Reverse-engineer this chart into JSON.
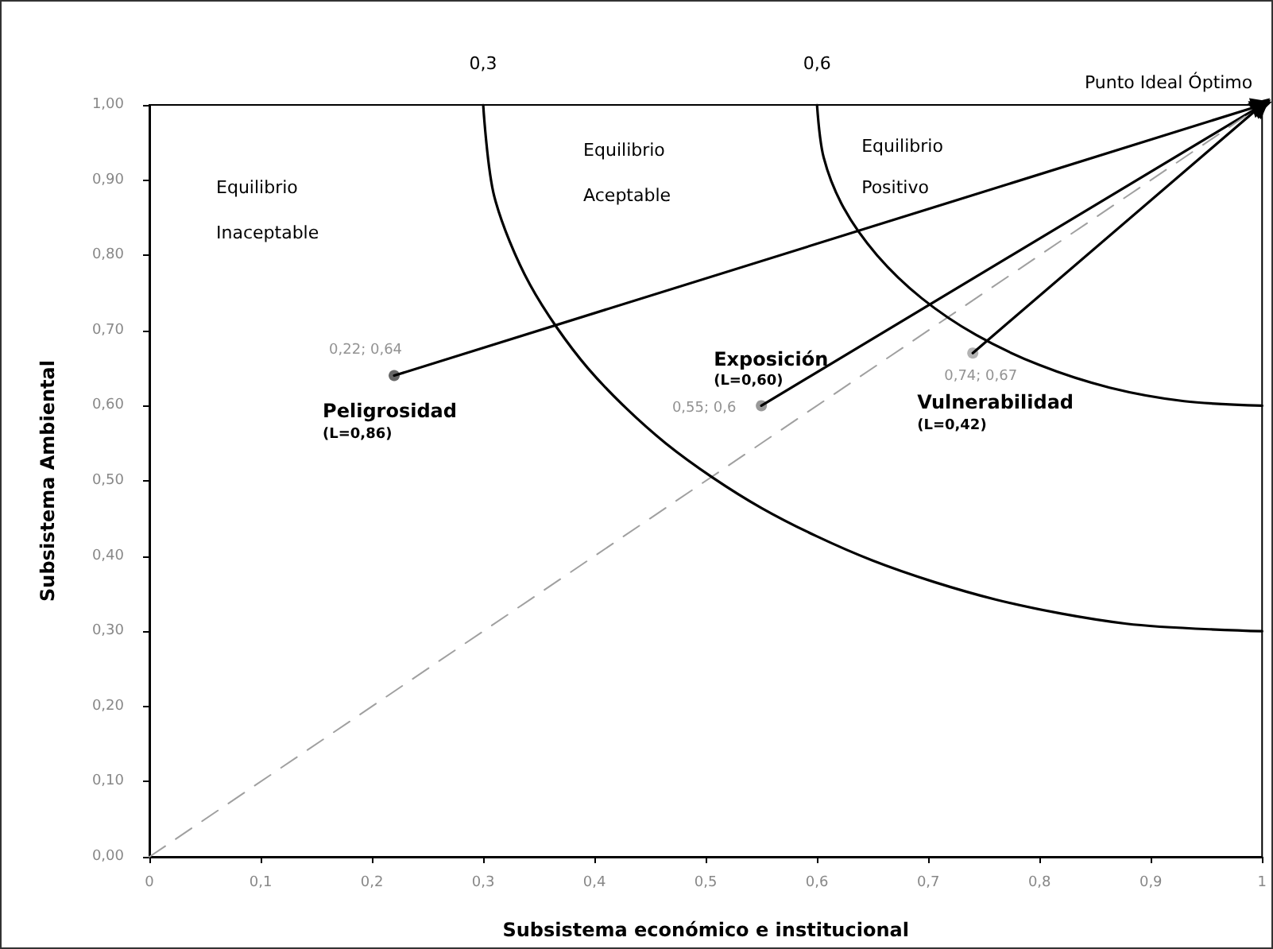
{
  "chart_data": {
    "type": "scatter",
    "xlabel": "Subsistema económico e institucional",
    "ylabel": "Subsistema Ambiental",
    "xlim": [
      0,
      1
    ],
    "ylim": [
      0,
      1
    ],
    "xticks": [
      0,
      {
        "value": 0.1,
        "label": "0,1"
      },
      {
        "value": 0.2,
        "label": "0,2"
      },
      {
        "value": 0.3,
        "label": "0,3"
      },
      {
        "value": 0.4,
        "label": "0,4"
      },
      {
        "value": 0.5,
        "label": "0,5"
      },
      {
        "value": 0.6,
        "label": "0,6"
      },
      {
        "value": 0.7,
        "label": "0,7"
      },
      {
        "value": 0.8,
        "label": "0,8"
      },
      {
        "value": 0.9,
        "label": "0,9"
      },
      1
    ],
    "yticks": [
      {
        "value": 0,
        "label": "0,00"
      },
      {
        "value": 0.1,
        "label": "0,10"
      },
      {
        "value": 0.2,
        "label": "0,20"
      },
      {
        "value": 0.3,
        "label": "0,30"
      },
      {
        "value": 0.4,
        "label": "0,40"
      },
      {
        "value": 0.5,
        "label": "0,50"
      },
      {
        "value": 0.6,
        "label": "0,60"
      },
      {
        "value": 0.7,
        "label": "0,70"
      },
      {
        "value": 0.8,
        "label": "0,80"
      },
      {
        "value": 0.9,
        "label": "0,90"
      },
      {
        "value": 1,
        "label": "1,00"
      }
    ],
    "grid": false,
    "legend": false,
    "marker": "circle",
    "series": [
      {
        "name": "Peligrosidad",
        "color": "#404040",
        "x": [
          0.22
        ],
        "values": [
          0.64
        ],
        "value_labels": [
          "0,22; 0,64"
        ]
      },
      {
        "name": "Exposición",
        "color": "#808080",
        "x": [
          0.55
        ],
        "values": [
          0.6
        ],
        "value_labels": [
          "0,55; 0,6"
        ]
      },
      {
        "name": "Vulnerabilidad",
        "color": "#a0a0a0",
        "x": [
          0.74
        ],
        "values": [
          0.67
        ],
        "value_labels": [
          "0,74; 0,67"
        ]
      },
      {
        "type": "line",
        "color": "#000000",
        "marker": "triangle",
        "x": [
          0.22,
          1
        ],
        "values": [
          0.64,
          1
        ]
      },
      {
        "type": "line",
        "color": "#000000",
        "marker": "triangle",
        "x": [
          0.55,
          1
        ],
        "values": [
          0.6,
          1
        ]
      },
      {
        "type": "line",
        "color": "#000000",
        "marker": "triangle",
        "x": [
          0.74,
          1
        ],
        "values": [
          0.67,
          1
        ]
      },
      {
        "type": "line",
        "color": "#a0a0a0",
        "marker": "none",
        "line_style": "dashed",
        "x": [
          0,
          1
        ],
        "values": [
          0,
          1
        ]
      },
      {
        "type": "line",
        "color": "#000000",
        "marker": "none",
        "x": [
          0.3,
          0.31,
          0.342,
          0.394,
          0.464,
          0.55,
          0.65,
          0.761,
          0.878,
          1
        ],
        "values": [
          1,
          0.878,
          0.761,
          0.65,
          0.55,
          0.464,
          0.394,
          0.342,
          0.31,
          0.3
        ]
      },
      {
        "type": "line",
        "color": "#000000",
        "marker": "none",
        "x": [
          0.6,
          0.606,
          0.624,
          0.654,
          0.694,
          0.743,
          0.8,
          0.863,
          0.93,
          1
        ],
        "values": [
          1,
          0.93,
          0.863,
          0.8,
          0.743,
          0.694,
          0.654,
          0.624,
          0.606,
          0.6
        ]
      }
    ],
    "annotations": [
      {
        "text": "Punto Ideal Óptimo",
        "x": 1,
        "y": 1
      },
      {
        "text": "0,3",
        "x": 0.3,
        "y": 1
      },
      {
        "text": "0,6",
        "x": 0.6,
        "y": 1
      },
      "Equilibrio",
      "Inaceptable",
      "Equilibrio",
      "Aceptable",
      "Equilibrio",
      "Positivo",
      "(L=0,86)",
      "(L=0,60)",
      "(L=0,42)"
    ]
  }
}
